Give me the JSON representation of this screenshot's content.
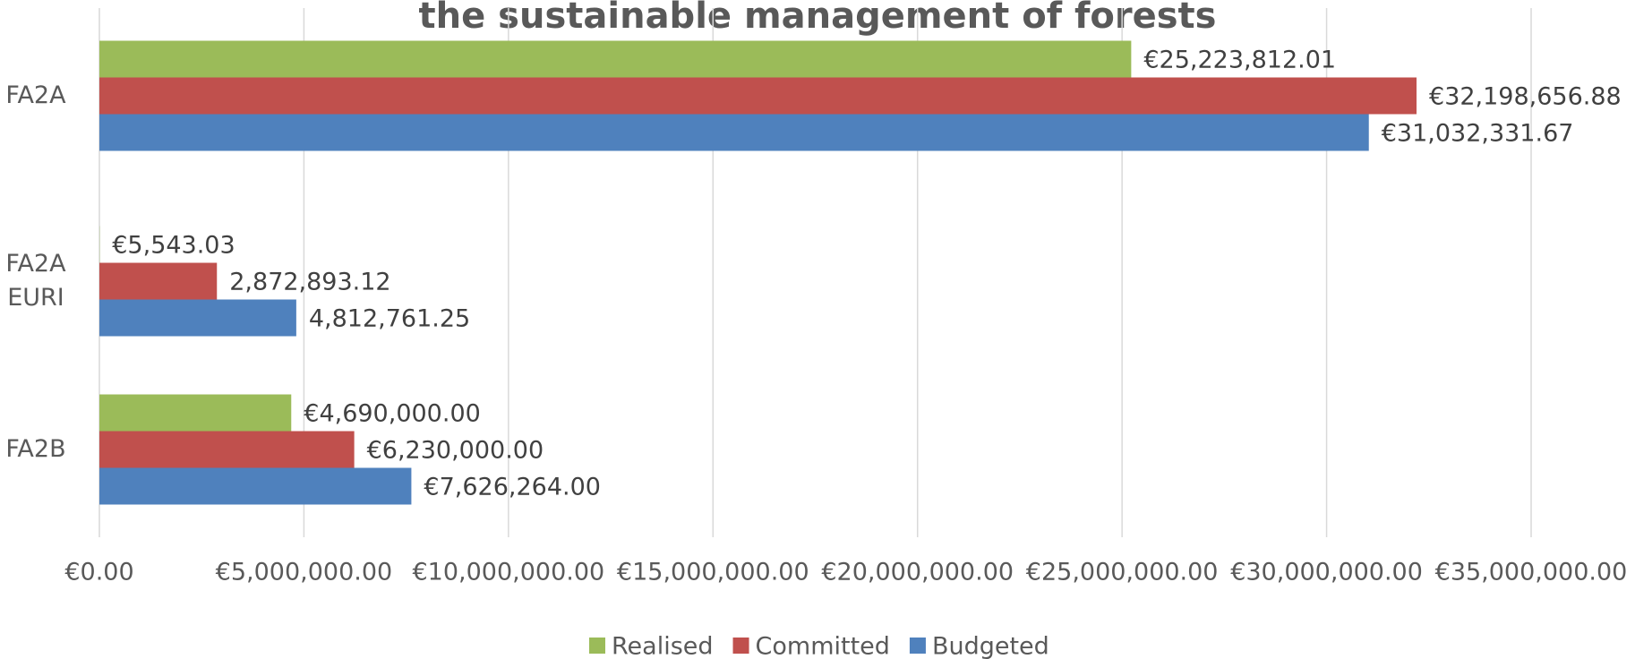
{
  "chart_data": {
    "type": "bar",
    "orientation": "horizontal",
    "title": "the sustainable management of forests",
    "categories": [
      "FA2A",
      "FA2A EURI",
      "FA2B"
    ],
    "series": [
      {
        "name": "Realised",
        "color": "#9bbb59",
        "values": [
          25223812.01,
          5543.03,
          4690000.0
        ],
        "value_labels": [
          "€25,223,812.01",
          "€5,543.03",
          "€4,690,000.00"
        ]
      },
      {
        "name": "Committed",
        "color": "#c0504d",
        "values": [
          32198656.88,
          2872893.12,
          6230000.0
        ],
        "value_labels": [
          "€32,198,656.88",
          "2,872,893.12",
          "€6,230,000.00"
        ]
      },
      {
        "name": "Budgeted",
        "color": "#4f81bd",
        "values": [
          31032331.67,
          4812761.25,
          7626264.0
        ],
        "value_labels": [
          "€31,032,331.67",
          "4,812,761.25",
          "€7,626,264.00"
        ]
      }
    ],
    "xlim": [
      0,
      35000000
    ],
    "xticks": [
      {
        "value": 0,
        "label": "€0.00"
      },
      {
        "value": 5000000,
        "label": "€5,000,000.00"
      },
      {
        "value": 10000000,
        "label": "€10,000,000.00"
      },
      {
        "value": 15000000,
        "label": "€15,000,000.00"
      },
      {
        "value": 20000000,
        "label": "€20,000,000.00"
      },
      {
        "value": 25000000,
        "label": "€25,000,000.00"
      },
      {
        "value": 30000000,
        "label": "€30,000,000.00"
      },
      {
        "value": 35000000,
        "label": "€35,000,000.00"
      }
    ],
    "grid": true,
    "legend": "bottom"
  }
}
